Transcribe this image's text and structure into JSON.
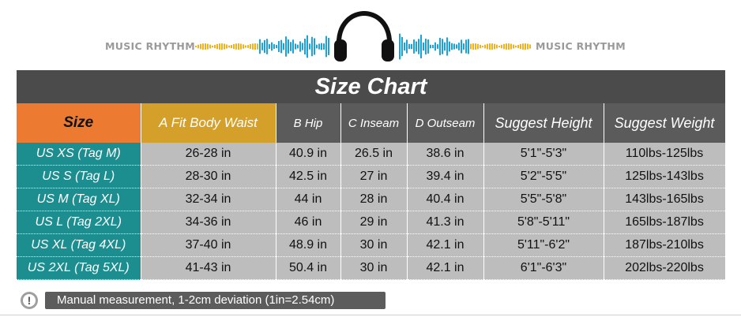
{
  "banner": {
    "brand_left": "MUSIC RHYTHM",
    "brand_right": "MUSIC RHYTHM",
    "icon": "headphones-icon",
    "wave_color": "#1aa3d8",
    "wave_accent": "#f0b21a"
  },
  "title": "Size Chart",
  "headers": {
    "size": "Size",
    "waist": "A   Fit Body Waist",
    "hip": "B  Hip",
    "inseam": "C  Inseam",
    "outseam": "D  Outseam",
    "height": "Suggest  Height",
    "weight": "Suggest Weight"
  },
  "rows": [
    {
      "size": "US XS (Tag M)",
      "waist": "26-28 in",
      "hip": "40.9 in",
      "inseam": "26.5 in",
      "outseam": "38.6 in",
      "height": "5'1\"-5'3\"",
      "weight": "110lbs-125lbs"
    },
    {
      "size": "US S (Tag L)",
      "waist": "28-30 in",
      "hip": "42.5 in",
      "inseam": "27 in",
      "outseam": "39.4 in",
      "height": "5'2\"-5'5\"",
      "weight": "125lbs-143lbs"
    },
    {
      "size": "US M (Tag XL)",
      "waist": "32-34 in",
      "hip": "44 in",
      "inseam": "28 in",
      "outseam": "40.4 in",
      "height": "5'5\"-5'8\"",
      "weight": "143lbs-165lbs"
    },
    {
      "size": "US L (Tag 2XL)",
      "waist": "34-36 in",
      "hip": "46 in",
      "inseam": "29 in",
      "outseam": "41.3 in",
      "height": "5'8\"-5'11\"",
      "weight": "165lbs-187lbs"
    },
    {
      "size": "US XL (Tag 4XL)",
      "waist": "37-40 in",
      "hip": "48.9 in",
      "inseam": "30 in",
      "outseam": "42.1 in",
      "height": "5'11\"-6'2\"",
      "weight": "187lbs-210lbs"
    },
    {
      "size": "US 2XL (Tag 5XL)",
      "waist": "41-43 in",
      "hip": "50.4 in",
      "inseam": "30 in",
      "outseam": "42.1 in",
      "height": "6'1\"-6'3\"",
      "weight": "202lbs-220lbs"
    }
  ],
  "note": {
    "icon": "exclamation-icon",
    "icon_glyph": "!",
    "text": "Manual measurement, 1-2cm deviation (1in=2.54cm)"
  },
  "colors": {
    "title_bg": "#4b4b4b",
    "size_header": "#ec7b31",
    "waist_header": "#d4a02a",
    "header_bg": "#5b5b5b",
    "size_cell": "#1d8e90",
    "cell_bg": "#bdbdbd"
  }
}
